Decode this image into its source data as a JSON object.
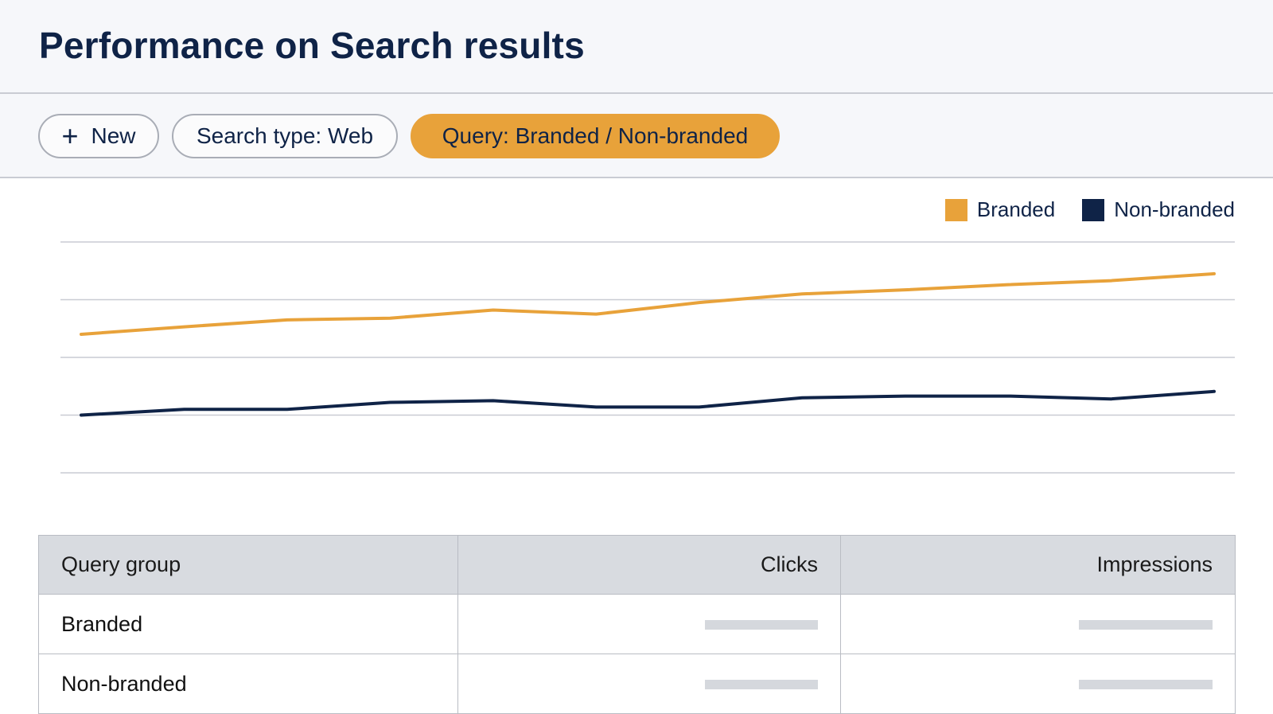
{
  "page": {
    "title": "Performance on Search results"
  },
  "toolbar": {
    "new_label": "New",
    "search_type_label": "Search type: Web",
    "query_filter_label": "Query: Branded / Non-branded"
  },
  "colors": {
    "accent": "#e8a23a",
    "navy": "#0f2347",
    "grid": "#c9ccd3"
  },
  "icons": {
    "new": "plus-icon"
  },
  "chart_data": {
    "type": "line",
    "x": [
      1,
      2,
      3,
      4,
      5,
      6,
      7,
      8,
      9,
      10,
      11,
      12
    ],
    "series": [
      {
        "name": "Branded",
        "color": "#e8a23a",
        "values": [
          2.4,
          2.53,
          2.65,
          2.68,
          2.82,
          2.75,
          2.95,
          3.1,
          3.17,
          3.26,
          3.33,
          3.45
        ]
      },
      {
        "name": "Non-branded",
        "color": "#0f2347",
        "values": [
          1.0,
          1.1,
          1.1,
          1.22,
          1.25,
          1.14,
          1.14,
          1.3,
          1.33,
          1.33,
          1.28,
          1.41
        ]
      }
    ],
    "ylim": [
      0,
      4
    ],
    "grid": true,
    "legend": "top-right",
    "title": "",
    "xlabel": "",
    "ylabel": ""
  },
  "table": {
    "headers": [
      "Query group",
      "Clicks",
      "Impressions"
    ],
    "rows": [
      {
        "label": "Branded"
      },
      {
        "label": "Non-branded"
      }
    ]
  }
}
